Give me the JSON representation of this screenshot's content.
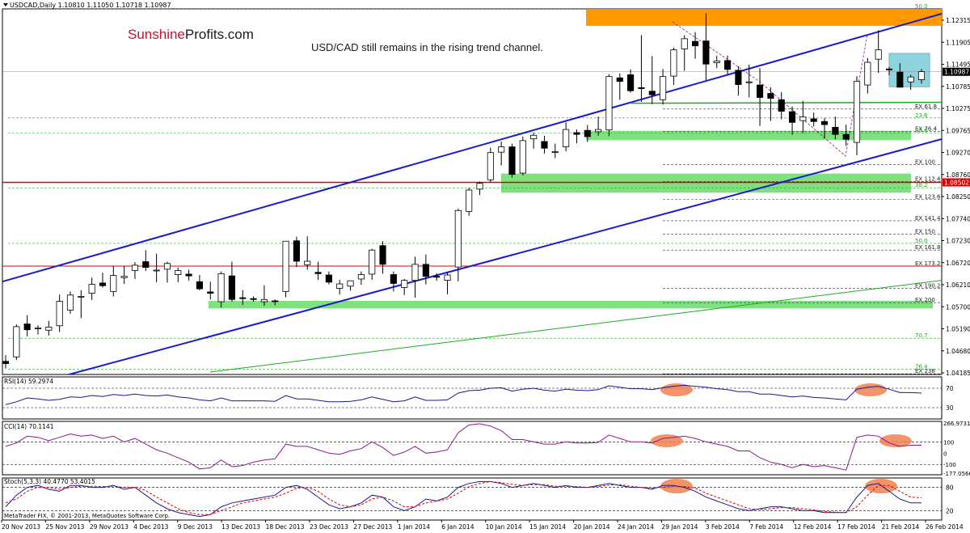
{
  "brand": {
    "part1": "Sunshine",
    "part2": "Profits.com"
  },
  "headline": "USD/CAD still remains in the rising trend channel.",
  "header_text": "USDCAD,Daily  1.10810 1.11050 1.10718 1.10987",
  "copyright": "MetaTrader FIX, © 2001-2013, MetaQuotes Software Corp.",
  "colors": {
    "bull": "#ffffff",
    "bear": "#000000",
    "channel": "#1a1acc",
    "support": "#22aa22",
    "zone": "#7fe07f",
    "resistance": "#ff9900",
    "current": "#8fd3df",
    "hline": "#e00000",
    "rsi": "#1a1a8c",
    "cci": "#8a1a8a",
    "stoch_main": "#1a1a8c",
    "stoch_signal": "#e00000",
    "ellipse": "#f08050"
  },
  "chart_data": [
    {
      "type": "candlestick",
      "title": "USDCAD,Daily",
      "ohlc_last": [
        1.1081,
        1.1105,
        1.10718,
        1.10987
      ],
      "ylim": [
        1.04185,
        1.124
      ],
      "yticks": [
        "1.12315",
        "1.11905",
        "1.11495",
        "1.10785",
        "1.10275",
        "1.09765",
        "1.09270",
        "1.08760",
        "1.08250",
        "1.07740",
        "1.07230",
        "1.06720",
        "1.06210",
        "1.05700",
        "1.05190",
        "1.04680",
        "1.04185"
      ],
      "current_price": "1.10987",
      "red_level": "1.08502",
      "xticks": [
        "20 Nov 2013",
        "25 Nov 2013",
        "29 Nov 2013",
        "4 Dec 2013",
        "9 Dec 2013",
        "13 Dec 2013",
        "18 Dec 2013",
        "23 Dec 2013",
        "27 Dec 2013",
        "1 Jan 2014",
        "6 Jan 2014",
        "10 Jan 2014",
        "15 Jan 2014",
        "20 Jan 2014",
        "24 Jan 2014",
        "29 Jan 2014",
        "3 Feb 2014",
        "7 Feb 2014",
        "12 Feb 2014",
        "17 Feb 2014",
        "21 Feb 2014",
        "26 Feb 2014"
      ],
      "candles": [
        [
          1.0448,
          1.0462,
          1.0432,
          1.0443
        ],
        [
          1.0458,
          1.0531,
          1.0451,
          1.0526
        ],
        [
          1.0532,
          1.0552,
          1.0504,
          1.0519
        ],
        [
          1.0521,
          1.0529,
          1.0508,
          1.0523
        ],
        [
          1.0518,
          1.0539,
          1.0506,
          1.0525
        ],
        [
          1.0528,
          1.0598,
          1.0514,
          1.0583
        ],
        [
          1.0563,
          1.0605,
          1.0555,
          1.0597
        ],
        [
          1.0594,
          1.0608,
          1.0545,
          1.0594
        ],
        [
          1.0601,
          1.0636,
          1.0586,
          1.0621
        ],
        [
          1.0624,
          1.0647,
          1.0614,
          1.0618
        ],
        [
          1.0605,
          1.0662,
          1.0594,
          1.0641
        ],
        [
          1.0636,
          1.0662,
          1.0622,
          1.0639
        ],
        [
          1.0652,
          1.0671,
          1.0633,
          1.0664
        ],
        [
          1.0672,
          1.0698,
          1.0651,
          1.0659
        ],
        [
          1.0653,
          1.069,
          1.0626,
          1.0653
        ],
        [
          1.0655,
          1.0672,
          1.0625,
          1.0668
        ],
        [
          1.0643,
          1.0659,
          1.0626,
          1.0652
        ],
        [
          1.0644,
          1.0654,
          1.0629,
          1.064
        ],
        [
          1.0627,
          1.0642,
          1.0608,
          1.0611
        ],
        [
          1.0604,
          1.0627,
          1.0587,
          1.0601
        ],
        [
          1.0582,
          1.065,
          1.0569,
          1.0645
        ],
        [
          1.064,
          1.0672,
          1.0582,
          1.0587
        ],
        [
          1.0591,
          1.0608,
          1.0575,
          1.0589
        ],
        [
          1.0589,
          1.0594,
          1.0582,
          1.0587
        ],
        [
          1.0582,
          1.0619,
          1.0573,
          1.0587
        ],
        [
          1.0584,
          1.0587,
          1.0574,
          1.0583
        ],
        [
          1.0605,
          1.0718,
          1.0592,
          1.0718
        ],
        [
          1.0719,
          1.0728,
          1.066,
          1.0673
        ],
        [
          1.0665,
          1.0729,
          1.0654,
          1.0673
        ],
        [
          1.0648,
          1.0672,
          1.0631,
          1.0645
        ],
        [
          1.0642,
          1.065,
          1.0621,
          1.0626
        ],
        [
          1.0612,
          1.0631,
          1.0598,
          1.0622
        ],
        [
          1.0617,
          1.063,
          1.0607,
          1.0629
        ],
        [
          1.0633,
          1.065,
          1.062,
          1.0643
        ],
        [
          1.0644,
          1.0701,
          1.0631,
          1.0698
        ],
        [
          1.0708,
          1.0718,
          1.0645,
          1.0666
        ],
        [
          1.0643,
          1.065,
          1.0605,
          1.0623
        ],
        [
          1.0614,
          1.0633,
          1.0597,
          1.063
        ],
        [
          1.063,
          1.0683,
          1.0591,
          1.0666
        ],
        [
          1.0666,
          1.0688,
          1.0621,
          1.0639
        ],
        [
          1.0639,
          1.0646,
          1.0629,
          1.0637
        ],
        [
          1.063,
          1.0649,
          1.0599,
          1.0642
        ],
        [
          1.066,
          1.0791,
          1.0628,
          1.0787
        ],
        [
          1.0785,
          1.0838,
          1.0775,
          1.0833
        ],
        [
          1.0835,
          1.0852,
          1.0822,
          1.0848
        ],
        [
          1.0856,
          1.0928,
          1.0851,
          1.0917
        ],
        [
          1.0918,
          1.0942,
          1.0888,
          1.093
        ],
        [
          1.093,
          1.0937,
          1.0861,
          1.0868
        ],
        [
          1.0871,
          1.0953,
          1.0866,
          1.0944
        ],
        [
          1.0948,
          1.0962,
          1.0926,
          1.0956
        ],
        [
          1.0942,
          1.0955,
          1.0915,
          1.0927
        ],
        [
          1.0919,
          1.0937,
          1.0905,
          1.0919
        ],
        [
          1.093,
          1.0985,
          1.092,
          1.0969
        ],
        [
          1.0962,
          1.0969,
          1.0938,
          1.0958
        ],
        [
          1.0967,
          1.0979,
          1.0941,
          1.0953
        ],
        [
          1.0964,
          1.0998,
          1.0955,
          1.0969
        ],
        [
          1.0968,
          1.1093,
          1.0954,
          1.1088
        ],
        [
          1.1085,
          1.1095,
          1.1036,
          1.1077
        ],
        [
          1.1092,
          1.1104,
          1.1052,
          1.1056
        ],
        [
          1.1063,
          1.1181,
          1.1031,
          1.1061
        ],
        [
          1.1055,
          1.1134,
          1.1026,
          1.1047
        ],
        [
          1.1036,
          1.1105,
          1.1025,
          1.1088
        ],
        [
          1.1089,
          1.1153,
          1.1069,
          1.1148
        ],
        [
          1.115,
          1.1181,
          1.1101,
          1.1173
        ],
        [
          1.1167,
          1.1188,
          1.1128,
          1.1157
        ],
        [
          1.1168,
          1.123,
          1.108,
          1.1116
        ],
        [
          1.1119,
          1.1135,
          1.1107,
          1.1123
        ],
        [
          1.1124,
          1.1135,
          1.1093,
          1.1104
        ],
        [
          1.1102,
          1.1111,
          1.1045,
          1.107
        ],
        [
          1.1075,
          1.1115,
          1.1041,
          1.1076
        ],
        [
          1.1069,
          1.1107,
          1.0977,
          1.1041
        ],
        [
          1.105,
          1.1064,
          1.0988,
          1.1039
        ],
        [
          1.1036,
          1.1053,
          1.0992,
          1.101
        ],
        [
          1.1009,
          1.1021,
          1.0957,
          1.0985
        ],
        [
          1.0989,
          1.1033,
          1.0961,
          1.0997
        ],
        [
          1.0993,
          1.1007,
          1.0976,
          1.0987
        ],
        [
          1.0987,
          1.0995,
          1.0949,
          1.098
        ],
        [
          1.0974,
          1.0998,
          1.0947,
          1.0958
        ],
        [
          1.0958,
          1.098,
          1.0932,
          1.0947
        ],
        [
          1.094,
          1.1089,
          1.0911,
          1.1077
        ],
        [
          1.1069,
          1.113,
          1.105,
          1.112
        ],
        [
          1.1127,
          1.1192,
          1.1096,
          1.1148
        ],
        [
          1.1105,
          1.111,
          1.1091,
          1.1103
        ],
        [
          1.1098,
          1.1118,
          1.1067,
          1.1064
        ],
        [
          1.1076,
          1.1092,
          1.1058,
          1.1087
        ],
        [
          1.1081,
          1.1105,
          1.1072,
          1.1099
        ]
      ],
      "fib_labels": [
        {
          "text": "50.0",
          "price": 1.124,
          "color": "green"
        },
        {
          "text": "EX 61.8",
          "price": 1.1015,
          "color": "dark"
        },
        {
          "text": "23.6",
          "price": 1.0995,
          "color": "green"
        },
        {
          "text": "EX 76.4",
          "price": 1.0965,
          "color": "dark"
        },
        {
          "text": "23.6",
          "price": 1.0961,
          "color": "green"
        },
        {
          "text": "EX 100",
          "price": 1.089,
          "color": "dark"
        },
        {
          "text": "EX 112.4",
          "price": 1.0852,
          "color": "dark"
        },
        {
          "text": "38.2",
          "price": 1.0838,
          "color": "green"
        },
        {
          "text": "EX 123.6",
          "price": 1.0812,
          "color": "dark"
        },
        {
          "text": "EX 141.4",
          "price": 1.0764,
          "color": "dark"
        },
        {
          "text": "EX 150",
          "price": 1.0734,
          "color": "dark"
        },
        {
          "text": "50.0",
          "price": 1.0713,
          "color": "green"
        },
        {
          "text": "EX 161.8",
          "price": 1.0698,
          "color": "dark"
        },
        {
          "text": "EX 173.2",
          "price": 1.0662,
          "color": "dark"
        },
        {
          "text": "EX 190.2",
          "price": 1.0612,
          "color": "dark"
        },
        {
          "text": "EX 200",
          "price": 1.058,
          "color": "dark"
        },
        {
          "text": "70.7",
          "price": 1.05,
          "color": "green"
        },
        {
          "text": "76.4",
          "price": 1.043,
          "color": "green"
        },
        {
          "text": "EX 238",
          "price": 1.042,
          "color": "dark"
        }
      ]
    },
    {
      "type": "line",
      "title": "RSI(14) 59.2974",
      "yticks": [
        "70",
        "30"
      ],
      "ylim": [
        10,
        90
      ],
      "values": [
        36,
        42,
        50,
        48,
        45,
        47,
        52,
        51,
        55,
        53,
        57,
        55,
        58,
        55,
        54,
        56,
        52,
        50,
        46,
        44,
        50,
        44,
        44,
        44,
        44,
        43,
        55,
        48,
        48,
        45,
        42,
        42,
        43,
        46,
        52,
        47,
        42,
        44,
        52,
        45,
        45,
        46,
        60,
        65,
        66,
        70,
        71,
        64,
        68,
        70,
        66,
        64,
        68,
        66,
        65,
        67,
        75,
        72,
        69,
        69,
        67,
        71,
        74,
        76,
        74,
        72,
        69,
        67,
        63,
        63,
        58,
        58,
        55,
        52,
        54,
        51,
        50,
        48,
        46,
        68,
        72,
        74,
        68,
        61,
        61,
        60
      ]
    },
    {
      "type": "line",
      "title": "CCI(14) 70.1141",
      "yticks": [
        "266.9731",
        "100",
        "0",
        "-100",
        "-177.0566"
      ],
      "ylim": [
        -177.0566,
        266.9731
      ],
      "values": [
        60,
        90,
        150,
        140,
        110,
        140,
        170,
        150,
        160,
        130,
        150,
        100,
        130,
        80,
        30,
        0,
        -40,
        -80,
        -140,
        -130,
        -60,
        -120,
        -110,
        -80,
        -60,
        -50,
        80,
        60,
        60,
        30,
        0,
        -10,
        20,
        40,
        100,
        50,
        -20,
        10,
        60,
        0,
        10,
        30,
        180,
        250,
        260,
        240,
        200,
        120,
        120,
        100,
        80,
        80,
        100,
        90,
        90,
        95,
        160,
        130,
        100,
        100,
        90,
        130,
        140,
        150,
        130,
        100,
        80,
        60,
        20,
        20,
        -40,
        -80,
        -100,
        -130,
        -100,
        -120,
        -110,
        -130,
        -150,
        140,
        160,
        150,
        90,
        60,
        70,
        70
      ]
    },
    {
      "type": "line",
      "title": "Stoch(5,3,3) 40.4770 53.4015",
      "yticks": [
        "80",
        "20"
      ],
      "ylim": [
        0,
        100
      ],
      "series": [
        {
          "name": "main",
          "values": [
            30,
            60,
            80,
            85,
            75,
            70,
            85,
            85,
            80,
            80,
            85,
            75,
            80,
            60,
            40,
            25,
            15,
            10,
            5,
            10,
            30,
            40,
            45,
            50,
            55,
            60,
            80,
            85,
            75,
            55,
            35,
            25,
            30,
            40,
            60,
            55,
            30,
            20,
            30,
            50,
            45,
            55,
            80,
            90,
            95,
            95,
            90,
            80,
            85,
            90,
            85,
            80,
            85,
            80,
            80,
            85,
            90,
            85,
            80,
            80,
            75,
            85,
            85,
            80,
            70,
            55,
            45,
            35,
            25,
            20,
            25,
            30,
            30,
            25,
            20,
            20,
            15,
            15,
            15,
            55,
            85,
            90,
            70,
            50,
            40,
            40
          ]
        },
        {
          "name": "signal",
          "values": [
            40,
            50,
            70,
            80,
            80,
            75,
            80,
            83,
            83,
            82,
            83,
            80,
            80,
            72,
            55,
            40,
            25,
            15,
            10,
            10,
            20,
            30,
            40,
            45,
            50,
            55,
            65,
            78,
            80,
            70,
            50,
            35,
            30,
            35,
            50,
            55,
            45,
            30,
            30,
            40,
            45,
            50,
            65,
            82,
            90,
            95,
            92,
            88,
            85,
            87,
            87,
            83,
            83,
            82,
            80,
            82,
            86,
            87,
            83,
            80,
            78,
            80,
            83,
            82,
            78,
            65,
            55,
            45,
            35,
            25,
            23,
            25,
            28,
            28,
            25,
            22,
            18,
            16,
            15,
            30,
            60,
            85,
            85,
            70,
            55,
            53
          ]
        }
      ]
    }
  ]
}
